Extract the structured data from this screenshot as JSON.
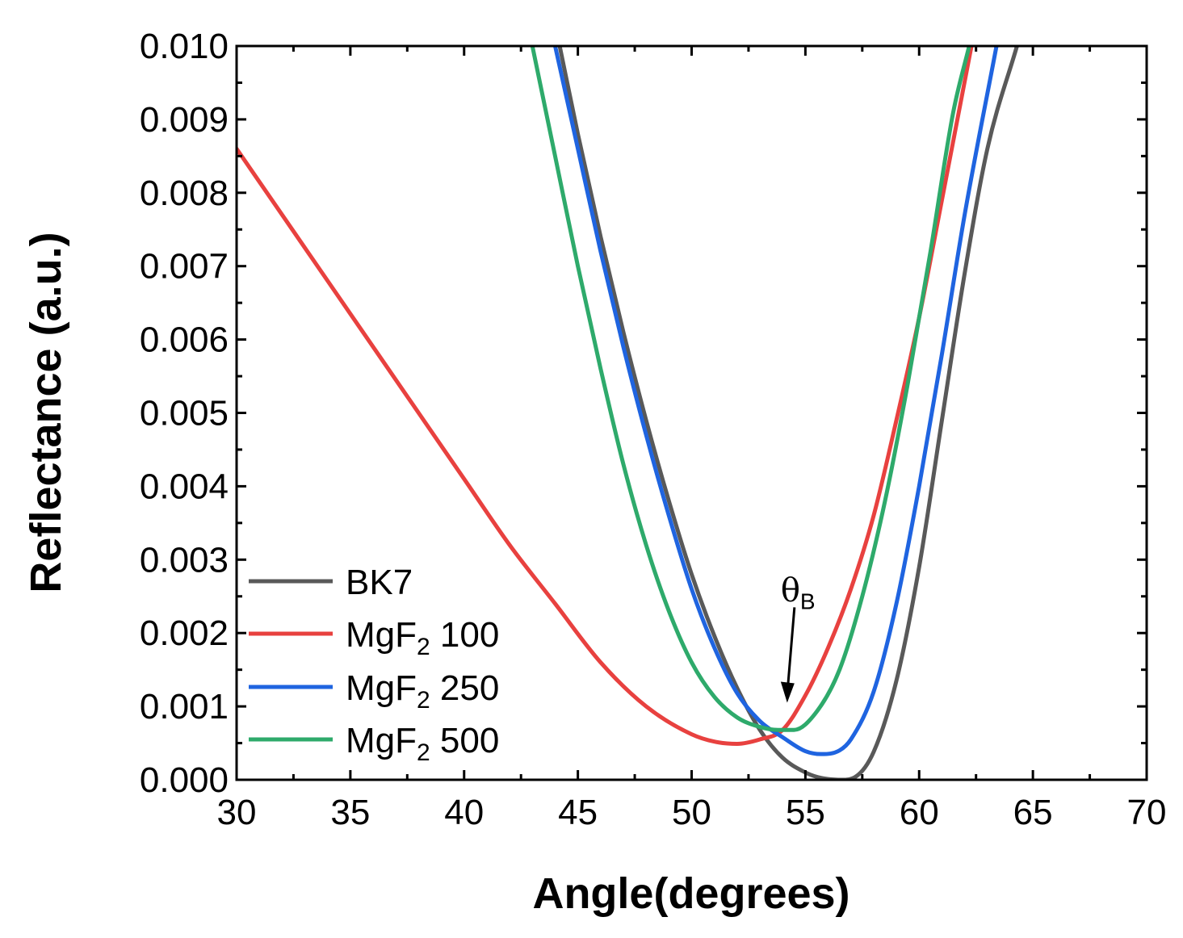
{
  "chart_data": {
    "type": "line",
    "xlabel": "Angle(degrees)",
    "ylabel": "Reflectance (a.u.)",
    "xlim": [
      30,
      70
    ],
    "ylim": [
      0.0,
      0.01
    ],
    "x_ticks": [
      "30",
      "35",
      "40",
      "45",
      "50",
      "55",
      "60",
      "65",
      "70"
    ],
    "x_tick_values": [
      30,
      35,
      40,
      45,
      50,
      55,
      60,
      65,
      70
    ],
    "y_ticks": [
      "0.000",
      "0.001",
      "0.002",
      "0.003",
      "0.004",
      "0.005",
      "0.006",
      "0.007",
      "0.008",
      "0.009",
      "0.010"
    ],
    "y_tick_values": [
      0.0,
      0.001,
      0.002,
      0.003,
      0.004,
      0.005,
      0.006,
      0.007,
      0.008,
      0.009,
      0.01
    ],
    "grid": false,
    "legend_position": "bottom-left",
    "annotation": {
      "symbol": "θ",
      "subscript": "B",
      "x": 54.2,
      "y": 0.00105,
      "arrow_from_y": 0.00235
    },
    "series": [
      {
        "name": "BK7",
        "name_base": "BK7",
        "name_sub": "",
        "name_rest": "",
        "color": "#595959",
        "x": [
          44.2,
          45,
          46,
          47,
          48,
          49,
          50,
          51,
          52,
          53,
          54,
          55,
          55.5,
          56,
          56.6,
          57.2,
          58,
          59,
          60,
          61,
          62,
          63,
          64.3
        ],
        "y": [
          0.01,
          0.0088,
          0.0074,
          0.0061,
          0.0049,
          0.0038,
          0.0028,
          0.00196,
          0.00125,
          0.00068,
          0.0003,
          0.0001,
          4e-05,
          1e-05,
          0.0,
          4e-05,
          0.00038,
          0.00135,
          0.0029,
          0.0049,
          0.0069,
          0.0086,
          0.01
        ]
      },
      {
        "name": "MgF2 100",
        "name_base": "MgF",
        "name_sub": "2",
        "name_rest": " 100",
        "color": "#e8413f",
        "x": [
          30,
          32,
          34,
          36,
          38,
          40,
          42,
          44,
          46,
          48,
          50,
          51,
          52,
          53,
          54,
          55,
          56,
          57,
          58,
          59,
          60,
          61,
          62.3
        ],
        "y": [
          0.0086,
          0.0077,
          0.0068,
          0.0059,
          0.005,
          0.0041,
          0.0032,
          0.0024,
          0.0016,
          0.001,
          0.00062,
          0.00052,
          0.00049,
          0.00055,
          0.00068,
          0.00115,
          0.0018,
          0.0026,
          0.0036,
          0.0049,
          0.0063,
          0.0079,
          0.01
        ]
      },
      {
        "name": "MgF2 250",
        "name_base": "MgF",
        "name_sub": "2",
        "name_rest": " 250",
        "color": "#1f64e0",
        "x": [
          44,
          45,
          46,
          47,
          48,
          49,
          50,
          51,
          52,
          53,
          54,
          55,
          55.7,
          56.5,
          57,
          58,
          59,
          60,
          61,
          62,
          63.4
        ],
        "y": [
          0.01,
          0.0086,
          0.0072,
          0.0059,
          0.0047,
          0.0036,
          0.0026,
          0.0018,
          0.00118,
          0.0008,
          0.00058,
          0.00039,
          0.00035,
          0.0004,
          0.00055,
          0.0012,
          0.0024,
          0.004,
          0.0058,
          0.0077,
          0.01
        ]
      },
      {
        "name": "MgF2 500",
        "name_base": "MgF",
        "name_sub": "2",
        "name_rest": " 500",
        "color": "#2eaa6b",
        "x": [
          43,
          44,
          45,
          46,
          47,
          48,
          49,
          50,
          51,
          52,
          53,
          53.8,
          54.5,
          55.5,
          56.5,
          57.5,
          58.5,
          59.5,
          60.5,
          61.5,
          62.2
        ],
        "y": [
          0.01,
          0.0085,
          0.007,
          0.0056,
          0.0043,
          0.0032,
          0.0023,
          0.0016,
          0.00113,
          0.00085,
          0.00072,
          0.00068,
          0.00068,
          0.00093,
          0.0015,
          0.0025,
          0.0038,
          0.0054,
          0.0072,
          0.0091,
          0.01
        ]
      }
    ]
  }
}
